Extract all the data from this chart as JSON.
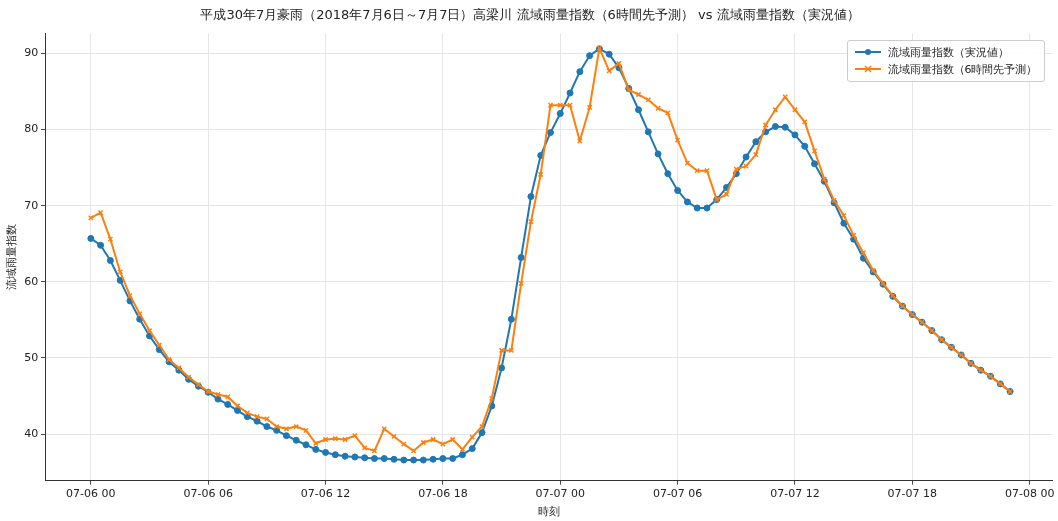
{
  "chart_data": {
    "type": "line",
    "title": "平成30年7月豪雨（2018年7月6日～7月7日）高梁川 流域雨量指数（6時間先予測） vs 流域雨量指数（実況値）",
    "xlabel": "時刻",
    "ylabel": "流域雨量指数",
    "x": [
      "2018-07-06T00:00",
      "2018-07-06T00:30",
      "2018-07-06T01:00",
      "2018-07-06T01:30",
      "2018-07-06T02:00",
      "2018-07-06T02:30",
      "2018-07-06T03:00",
      "2018-07-06T03:30",
      "2018-07-06T04:00",
      "2018-07-06T04:30",
      "2018-07-06T05:00",
      "2018-07-06T05:30",
      "2018-07-06T06:00",
      "2018-07-06T06:30",
      "2018-07-06T07:00",
      "2018-07-06T07:30",
      "2018-07-06T08:00",
      "2018-07-06T08:30",
      "2018-07-06T09:00",
      "2018-07-06T09:30",
      "2018-07-06T10:00",
      "2018-07-06T10:30",
      "2018-07-06T11:00",
      "2018-07-06T11:30",
      "2018-07-06T12:00",
      "2018-07-06T12:30",
      "2018-07-06T13:00",
      "2018-07-06T13:30",
      "2018-07-06T14:00",
      "2018-07-06T14:30",
      "2018-07-06T15:00",
      "2018-07-06T15:30",
      "2018-07-06T16:00",
      "2018-07-06T16:30",
      "2018-07-06T17:00",
      "2018-07-06T17:30",
      "2018-07-06T18:00",
      "2018-07-06T18:30",
      "2018-07-06T19:00",
      "2018-07-06T19:30",
      "2018-07-06T20:00",
      "2018-07-06T20:30",
      "2018-07-06T21:00",
      "2018-07-06T21:30",
      "2018-07-06T22:00",
      "2018-07-06T22:30",
      "2018-07-06T23:00",
      "2018-07-06T23:30",
      "2018-07-07T00:00",
      "2018-07-07T00:30",
      "2018-07-07T01:00",
      "2018-07-07T01:30",
      "2018-07-07T02:00",
      "2018-07-07T02:30",
      "2018-07-07T03:00",
      "2018-07-07T03:30",
      "2018-07-07T04:00",
      "2018-07-07T04:30",
      "2018-07-07T05:00",
      "2018-07-07T05:30",
      "2018-07-07T06:00",
      "2018-07-07T06:30",
      "2018-07-07T07:00",
      "2018-07-07T07:30",
      "2018-07-07T08:00",
      "2018-07-07T08:30",
      "2018-07-07T09:00",
      "2018-07-07T09:30",
      "2018-07-07T10:00",
      "2018-07-07T10:30",
      "2018-07-07T11:00",
      "2018-07-07T11:30",
      "2018-07-07T12:00",
      "2018-07-07T12:30",
      "2018-07-07T13:00",
      "2018-07-07T13:30",
      "2018-07-07T14:00",
      "2018-07-07T14:30",
      "2018-07-07T15:00",
      "2018-07-07T15:30",
      "2018-07-07T16:00",
      "2018-07-07T16:30",
      "2018-07-07T17:00",
      "2018-07-07T17:30",
      "2018-07-07T18:00",
      "2018-07-07T18:30",
      "2018-07-07T19:00",
      "2018-07-07T19:30",
      "2018-07-07T20:00",
      "2018-07-07T20:30",
      "2018-07-07T21:00",
      "2018-07-07T21:30",
      "2018-07-07T22:00",
      "2018-07-07T22:30",
      "2018-07-07T23:00"
    ],
    "series": [
      {
        "name": "流域雨量指数（実況値）",
        "color": "#1f77b4",
        "marker": "circle",
        "values": [
          65.7,
          64.8,
          62.8,
          60.2,
          57.5,
          55.1,
          52.9,
          51.1,
          49.5,
          48.4,
          47.2,
          46.3,
          45.5,
          44.6,
          43.9,
          43.1,
          42.3,
          41.7,
          41.0,
          40.5,
          39.8,
          39.2,
          38.6,
          38.0,
          37.6,
          37.3,
          37.1,
          37.0,
          36.9,
          36.8,
          36.8,
          36.7,
          36.6,
          36.6,
          36.6,
          36.7,
          36.8,
          36.8,
          37.3,
          38.1,
          40.2,
          43.7,
          48.7,
          55.1,
          63.2,
          71.2,
          76.6,
          79.6,
          82.1,
          84.8,
          87.6,
          89.7,
          90.6,
          89.9,
          88.1,
          85.4,
          82.6,
          79.7,
          76.8,
          74.2,
          72.0,
          70.5,
          69.7,
          69.7,
          70.8,
          72.4,
          74.2,
          76.4,
          78.4,
          79.7,
          80.4,
          80.3,
          79.3,
          77.8,
          75.5,
          73.2,
          70.4,
          67.7,
          65.6,
          63.1,
          61.3,
          59.7,
          58.1,
          56.8,
          55.7,
          54.7,
          53.6,
          52.4,
          51.4,
          50.4,
          49.3,
          48.4,
          47.6,
          46.6,
          45.6
        ]
      },
      {
        "name": "流域雨量指数（6時間先予測）",
        "color": "#ff7f0e",
        "marker": "cross",
        "values": [
          68.4,
          69.1,
          65.6,
          61.3,
          58.2,
          55.8,
          53.6,
          51.7,
          49.8,
          48.7,
          47.5,
          46.5,
          45.6,
          45.2,
          44.9,
          43.7,
          42.8,
          42.3,
          42.0,
          41.0,
          40.7,
          41.0,
          40.5,
          38.8,
          39.3,
          39.4,
          39.3,
          39.8,
          38.2,
          37.8,
          40.7,
          39.7,
          38.7,
          37.8,
          38.9,
          39.3,
          38.7,
          39.3,
          38.0,
          39.6,
          41.0,
          44.7,
          51.0,
          51.0,
          59.8,
          67.9,
          74.1,
          83.2,
          83.2,
          83.2,
          78.5,
          82.9,
          90.7,
          87.7,
          88.7,
          85.2,
          84.6,
          83.9,
          82.8,
          82.2,
          78.6,
          75.6,
          74.6,
          74.6,
          70.8,
          71.5,
          74.8,
          75.2,
          76.7,
          80.6,
          82.6,
          84.3,
          82.6,
          81.0,
          77.2,
          73.5,
          70.7,
          68.7,
          66.1,
          63.8,
          61.5,
          59.8,
          58.2,
          56.8,
          55.7,
          54.7,
          53.6,
          52.4,
          51.4,
          50.4,
          49.3,
          48.4,
          47.6,
          46.6,
          45.6
        ]
      }
    ],
    "xlim": [
      "2018-07-05T21:40",
      "2018-07-08T01:10"
    ],
    "xticks": [
      {
        "value": "2018-07-06T00:00",
        "label": "07-06 00"
      },
      {
        "value": "2018-07-06T06:00",
        "label": "07-06 06"
      },
      {
        "value": "2018-07-06T12:00",
        "label": "07-06 12"
      },
      {
        "value": "2018-07-06T18:00",
        "label": "07-06 18"
      },
      {
        "value": "2018-07-07T00:00",
        "label": "07-07 00"
      },
      {
        "value": "2018-07-07T06:00",
        "label": "07-07 06"
      },
      {
        "value": "2018-07-07T12:00",
        "label": "07-07 12"
      },
      {
        "value": "2018-07-07T18:00",
        "label": "07-07 18"
      },
      {
        "value": "2018-07-08T00:00",
        "label": "07-08 00"
      }
    ],
    "ylim": [
      33.9,
      92.6
    ],
    "yticks": [
      40,
      50,
      60,
      70,
      80,
      90
    ],
    "grid": true,
    "legend": "top right"
  }
}
